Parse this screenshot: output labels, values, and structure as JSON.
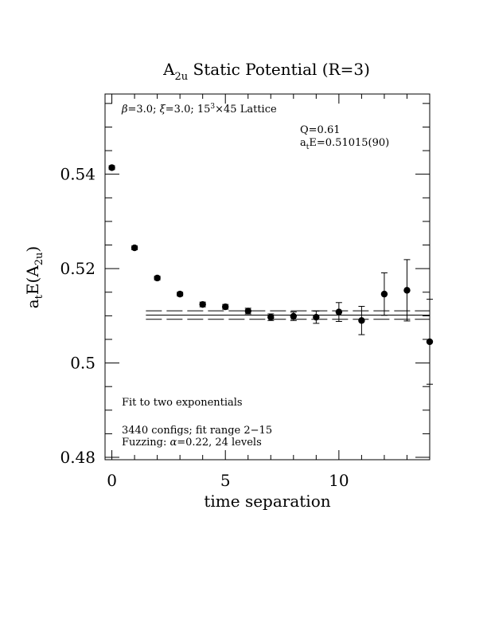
{
  "chart_data": {
    "type": "scatter",
    "title_main": "A",
    "title_sub": "2u",
    "title_rest": " Static Potential (R=3)",
    "xlabel": "time separation",
    "ylabel_parts": {
      "a": "a",
      "t_sub": "t",
      "E": "E(A",
      "two_u": "2u",
      "close": ")"
    },
    "xlim": [
      -0.3,
      14
    ],
    "ylim": [
      0.4795,
      0.557
    ],
    "x_ticks": [
      0,
      5,
      10
    ],
    "x_tick_labels": [
      "0",
      "5",
      "10"
    ],
    "y_ticks": [
      0.48,
      0.5,
      0.52,
      0.54
    ],
    "y_tick_labels": [
      "0.48",
      "0.5",
      "0.52",
      "0.54"
    ],
    "annotations": {
      "lattice": {
        "beta": "β",
        "beta_rest": "=3.0; ",
        "xi": "ξ",
        "xi_rest": "=3.0; 15",
        "cube": "3",
        "lattice_rest": "×45 Lattice"
      },
      "q_value": "Q=0.61",
      "energy": {
        "a": "a",
        "t_sub": "t",
        "rest": "E=0.51015(90)"
      },
      "fit_type": "Fit to two exponentials",
      "configs": "3440 configs; fit range 2−15",
      "fuzzing": {
        "label": "Fuzzing: ",
        "alpha": "α",
        "rest": "=0.22, 24 levels"
      }
    },
    "fit": {
      "x_range": [
        1.5,
        14
      ],
      "value": 0.51015,
      "error": 0.0009
    },
    "series": [
      {
        "points": [
          {
            "x": 0,
            "y": 0.5414,
            "err": 0.0004
          },
          {
            "x": 1,
            "y": 0.5244,
            "err": 0.0004
          },
          {
            "x": 2,
            "y": 0.518,
            "err": 0.0004
          },
          {
            "x": 3,
            "y": 0.5146,
            "err": 0.0004
          },
          {
            "x": 4,
            "y": 0.5124,
            "err": 0.0005
          },
          {
            "x": 5,
            "y": 0.5119,
            "err": 0.0005
          },
          {
            "x": 6,
            "y": 0.511,
            "err": 0.0006
          },
          {
            "x": 7,
            "y": 0.5097,
            "err": 0.0007
          },
          {
            "x": 8,
            "y": 0.5099,
            "err": 0.0009
          },
          {
            "x": 9,
            "y": 0.5097,
            "err": 0.0013
          },
          {
            "x": 10,
            "y": 0.5108,
            "err": 0.002
          },
          {
            "x": 11,
            "y": 0.509,
            "err": 0.003
          },
          {
            "x": 12,
            "y": 0.5146,
            "err": 0.0045
          },
          {
            "x": 13,
            "y": 0.5154,
            "err": 0.0065
          },
          {
            "x": 14,
            "y": 0.5045,
            "err": 0.009
          }
        ]
      }
    ]
  }
}
